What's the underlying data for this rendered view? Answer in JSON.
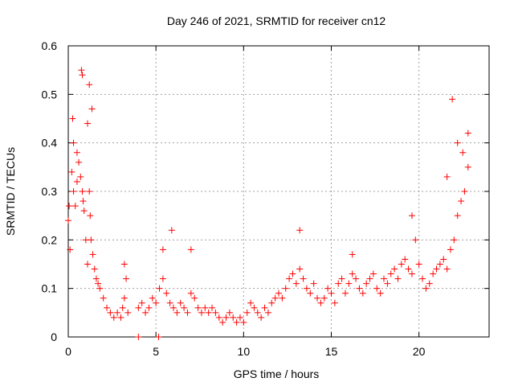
{
  "chart_data": {
    "type": "scatter",
    "title": "Day 246 of 2021, SRMTID for receiver cn12",
    "xlabel": "GPS time / hours",
    "ylabel": "SRMTID / TECUs",
    "xlim": [
      0,
      24
    ],
    "ylim": [
      0,
      0.6
    ],
    "x_ticks": [
      "0",
      "5",
      "10",
      "15",
      "20"
    ],
    "x_tick_values": [
      0,
      5,
      10,
      15,
      20
    ],
    "y_ticks": [
      "0",
      "0.1",
      "0.2",
      "0.3",
      "0.4",
      "0.5",
      "0.6"
    ],
    "y_tick_values": [
      0,
      0.1,
      0.2,
      0.3,
      0.4,
      0.5,
      0.6
    ],
    "grid": true,
    "marker": "+",
    "color": "#ff0000",
    "series": [
      {
        "name": "SRMTID",
        "x": [
          0.0,
          0.1,
          0.2,
          0.3,
          0.4,
          0.5,
          0.6,
          0.7,
          0.8,
          0.85,
          0.9,
          1.0,
          1.1,
          1.2,
          1.25,
          1.3,
          1.4,
          1.5,
          1.6,
          1.7,
          1.8,
          2.0,
          2.2,
          2.4,
          2.6,
          2.8,
          3.0,
          3.1,
          3.2,
          3.3,
          3.4,
          4.0,
          4.2,
          4.4,
          4.6,
          4.8,
          5.0,
          5.2,
          5.4,
          5.6,
          5.8,
          6.0,
          6.2,
          6.4,
          6.6,
          6.8,
          7.0,
          7.2,
          7.4,
          7.6,
          7.8,
          8.0,
          8.2,
          8.4,
          8.6,
          8.8,
          9.0,
          9.2,
          9.4,
          9.6,
          9.8,
          10.0,
          10.2,
          10.4,
          10.6,
          10.8,
          11.0,
          11.2,
          11.4,
          11.6,
          11.8,
          12.0,
          12.2,
          12.4,
          12.6,
          12.8,
          13.0,
          13.2,
          13.4,
          13.6,
          13.8,
          14.0,
          14.2,
          14.4,
          14.6,
          14.8,
          15.0,
          15.2,
          15.4,
          15.6,
          15.8,
          16.0,
          16.2,
          16.4,
          16.6,
          16.8,
          17.0,
          17.2,
          17.4,
          17.6,
          17.8,
          18.0,
          18.2,
          18.4,
          18.6,
          18.8,
          19.0,
          19.2,
          19.4,
          19.6,
          19.8,
          20.0,
          20.2,
          20.4,
          20.6,
          20.8,
          21.0,
          21.2,
          21.4,
          21.6,
          21.8,
          22.0,
          22.2,
          22.4,
          22.6,
          22.8,
          4.0,
          5.15,
          0.05,
          0.25,
          0.75,
          0.8,
          1.2,
          1.35,
          1.1,
          0.3,
          0.5,
          3.2,
          5.4,
          5.9,
          7.0,
          13.2,
          16.2,
          19.6,
          21.6,
          21.9,
          22.2,
          22.5,
          22.8
        ],
        "y": [
          0.24,
          0.18,
          0.34,
          0.3,
          0.27,
          0.32,
          0.36,
          0.33,
          0.3,
          0.28,
          0.26,
          0.2,
          0.15,
          0.3,
          0.25,
          0.2,
          0.17,
          0.14,
          0.12,
          0.11,
          0.1,
          0.08,
          0.06,
          0.05,
          0.04,
          0.05,
          0.04,
          0.06,
          0.08,
          0.12,
          0.05,
          0.06,
          0.07,
          0.05,
          0.06,
          0.08,
          0.07,
          0.1,
          0.12,
          0.09,
          0.07,
          0.06,
          0.05,
          0.07,
          0.06,
          0.05,
          0.09,
          0.08,
          0.06,
          0.05,
          0.06,
          0.05,
          0.06,
          0.05,
          0.04,
          0.03,
          0.04,
          0.05,
          0.04,
          0.03,
          0.04,
          0.03,
          0.05,
          0.07,
          0.06,
          0.05,
          0.04,
          0.06,
          0.05,
          0.07,
          0.08,
          0.09,
          0.08,
          0.1,
          0.12,
          0.13,
          0.11,
          0.14,
          0.12,
          0.1,
          0.09,
          0.11,
          0.08,
          0.07,
          0.08,
          0.1,
          0.09,
          0.07,
          0.11,
          0.12,
          0.09,
          0.11,
          0.13,
          0.12,
          0.1,
          0.09,
          0.11,
          0.12,
          0.13,
          0.1,
          0.09,
          0.12,
          0.11,
          0.13,
          0.14,
          0.12,
          0.15,
          0.16,
          0.14,
          0.13,
          0.2,
          0.15,
          0.12,
          0.1,
          0.11,
          0.13,
          0.14,
          0.15,
          0.16,
          0.14,
          0.18,
          0.2,
          0.25,
          0.28,
          0.3,
          0.35,
          0.0,
          0.0,
          0.27,
          0.45,
          0.55,
          0.54,
          0.52,
          0.47,
          0.44,
          0.4,
          0.38,
          0.15,
          0.18,
          0.22,
          0.18,
          0.22,
          0.17,
          0.25,
          0.33,
          0.49,
          0.4,
          0.38,
          0.42
        ]
      }
    ]
  }
}
